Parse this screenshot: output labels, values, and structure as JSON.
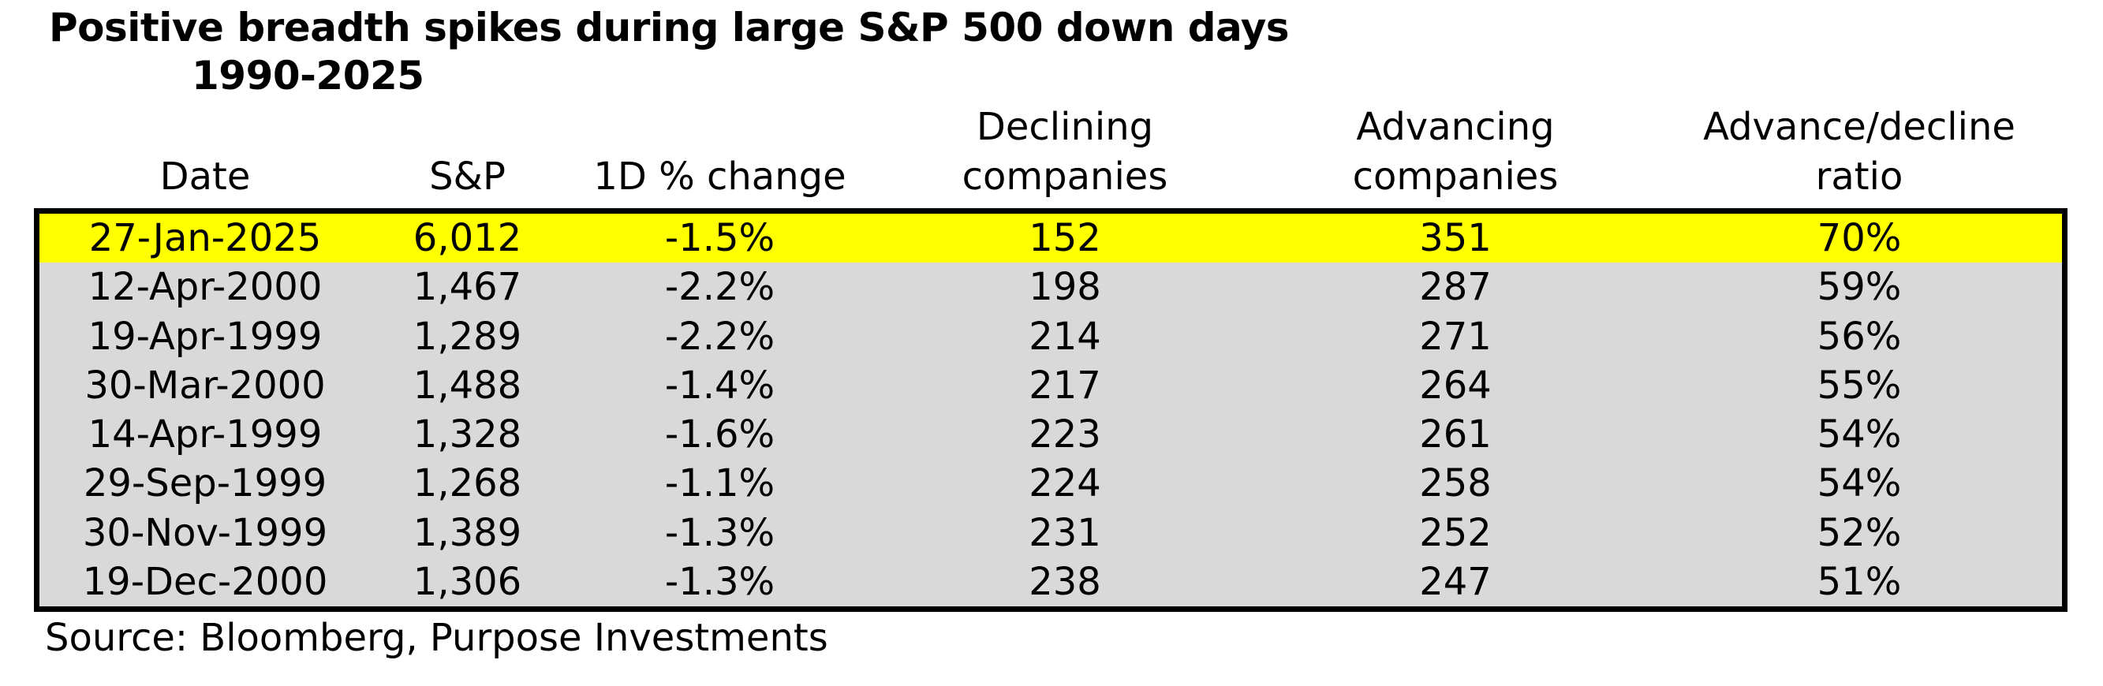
{
  "title": {
    "line1": "Positive breadth spikes during large S&P 500 down days",
    "line2": "1990-2025"
  },
  "source": "Source: Bloomberg, Purpose Investments",
  "colors": {
    "highlight_row": "#FFFF00",
    "body_row": "#D9D9D9",
    "border": "#000000",
    "text": "#000000",
    "background": "#FFFFFF"
  },
  "chart_data": {
    "type": "table",
    "title": "Positive breadth spikes during large S&P 500 down days",
    "subtitle": "1990-2025",
    "columns": [
      "Date",
      "S&P",
      "1D % change",
      "Declining companies",
      "Advancing companies",
      "Advance/decline ratio"
    ],
    "header_lines": [
      [
        "Date"
      ],
      [
        "S&P"
      ],
      [
        "1D % change"
      ],
      [
        "Declining",
        "companies"
      ],
      [
        "Advancing",
        "companies"
      ],
      [
        "Advance/decline",
        "ratio"
      ]
    ],
    "rows": [
      [
        "27-Jan-2025",
        "6,012",
        "-1.5%",
        "152",
        "351",
        "70%"
      ],
      [
        "12-Apr-2000",
        "1,467",
        "-2.2%",
        "198",
        "287",
        "59%"
      ],
      [
        "19-Apr-1999",
        "1,289",
        "-2.2%",
        "214",
        "271",
        "56%"
      ],
      [
        "30-Mar-2000",
        "1,488",
        "-1.4%",
        "217",
        "264",
        "55%"
      ],
      [
        "14-Apr-1999",
        "1,328",
        "-1.6%",
        "223",
        "261",
        "54%"
      ],
      [
        "29-Sep-1999",
        "1,268",
        "-1.1%",
        "224",
        "258",
        "54%"
      ],
      [
        "30-Nov-1999",
        "1,389",
        "-1.3%",
        "231",
        "252",
        "52%"
      ],
      [
        "19-Dec-2000",
        "1,306",
        "-1.3%",
        "238",
        "247",
        "51%"
      ]
    ],
    "highlighted_row_index": 0,
    "source": "Source: Bloomberg, Purpose Investments",
    "layout": {
      "grid": "off",
      "legend": "none"
    }
  }
}
